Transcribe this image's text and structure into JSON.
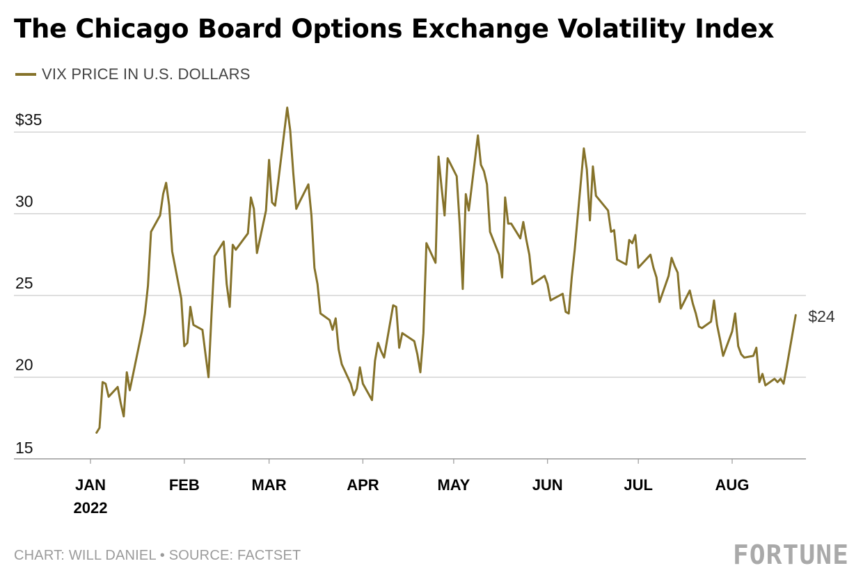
{
  "title": "The Chicago Board Options Exchange Volatility Index",
  "legend": {
    "label": "VIX PRICE IN U.S. DOLLARS"
  },
  "footer": {
    "credit": "CHART: WILL DANIEL • SOURCE: FACTSET",
    "logo": "FORTUNE"
  },
  "colors": {
    "series": "#85722a",
    "grid": "#cccccc",
    "axis": "#999999"
  },
  "chart_data": {
    "type": "line",
    "title": "The Chicago Board Options Exchange Volatility Index",
    "ylim": [
      15,
      35
    ],
    "y_ticks": [
      {
        "value": 35,
        "label": "$35"
      },
      {
        "value": 30,
        "label": "30"
      },
      {
        "value": 25,
        "label": "25"
      },
      {
        "value": 20,
        "label": "20"
      },
      {
        "value": 15,
        "label": "15"
      }
    ],
    "x_ticks": [
      {
        "date": "2022-01-01",
        "label": "JAN",
        "sublabel": "2022"
      },
      {
        "date": "2022-02-01",
        "label": "FEB"
      },
      {
        "date": "2022-03-01",
        "label": "MAR"
      },
      {
        "date": "2022-04-01",
        "label": "APR"
      },
      {
        "date": "2022-05-01",
        "label": "MAY"
      },
      {
        "date": "2022-06-01",
        "label": "JUN"
      },
      {
        "date": "2022-07-01",
        "label": "JUL"
      },
      {
        "date": "2022-08-01",
        "label": "AUG"
      }
    ],
    "grid": true,
    "end_label": "$24",
    "series": [
      {
        "name": "VIX PRICE IN U.S. DOLLARS",
        "points": [
          [
            "2022-01-03",
            16.6
          ],
          [
            "2022-01-04",
            16.9
          ],
          [
            "2022-01-05",
            19.7
          ],
          [
            "2022-01-06",
            19.6
          ],
          [
            "2022-01-07",
            18.8
          ],
          [
            "2022-01-10",
            19.4
          ],
          [
            "2022-01-11",
            18.4
          ],
          [
            "2022-01-12",
            17.6
          ],
          [
            "2022-01-13",
            20.3
          ],
          [
            "2022-01-14",
            19.2
          ],
          [
            "2022-01-18",
            22.8
          ],
          [
            "2022-01-19",
            23.9
          ],
          [
            "2022-01-20",
            25.6
          ],
          [
            "2022-01-21",
            28.9
          ],
          [
            "2022-01-24",
            29.9
          ],
          [
            "2022-01-25",
            31.2
          ],
          [
            "2022-01-26",
            31.9
          ],
          [
            "2022-01-27",
            30.5
          ],
          [
            "2022-01-28",
            27.7
          ],
          [
            "2022-01-31",
            24.8
          ],
          [
            "2022-02-01",
            21.9
          ],
          [
            "2022-02-02",
            22.1
          ],
          [
            "2022-02-03",
            24.3
          ],
          [
            "2022-02-04",
            23.2
          ],
          [
            "2022-02-07",
            22.9
          ],
          [
            "2022-02-08",
            21.4
          ],
          [
            "2022-02-09",
            20.0
          ],
          [
            "2022-02-10",
            23.9
          ],
          [
            "2022-02-11",
            27.4
          ],
          [
            "2022-02-14",
            28.3
          ],
          [
            "2022-02-15",
            25.7
          ],
          [
            "2022-02-16",
            24.3
          ],
          [
            "2022-02-17",
            28.1
          ],
          [
            "2022-02-18",
            27.8
          ],
          [
            "2022-02-22",
            28.8
          ],
          [
            "2022-02-23",
            31.0
          ],
          [
            "2022-02-24",
            30.3
          ],
          [
            "2022-02-25",
            27.6
          ],
          [
            "2022-02-28",
            30.2
          ],
          [
            "2022-03-01",
            33.3
          ],
          [
            "2022-03-02",
            30.7
          ],
          [
            "2022-03-03",
            30.5
          ],
          [
            "2022-03-04",
            31.9
          ],
          [
            "2022-03-07",
            36.5
          ],
          [
            "2022-03-08",
            35.1
          ],
          [
            "2022-03-09",
            32.5
          ],
          [
            "2022-03-10",
            30.3
          ],
          [
            "2022-03-11",
            30.7
          ],
          [
            "2022-03-14",
            31.8
          ],
          [
            "2022-03-15",
            29.9
          ],
          [
            "2022-03-16",
            26.7
          ],
          [
            "2022-03-17",
            25.7
          ],
          [
            "2022-03-18",
            23.9
          ],
          [
            "2022-03-21",
            23.5
          ],
          [
            "2022-03-22",
            22.9
          ],
          [
            "2022-03-23",
            23.6
          ],
          [
            "2022-03-24",
            21.7
          ],
          [
            "2022-03-25",
            20.8
          ],
          [
            "2022-03-28",
            19.6
          ],
          [
            "2022-03-29",
            18.9
          ],
          [
            "2022-03-30",
            19.3
          ],
          [
            "2022-03-31",
            20.6
          ],
          [
            "2022-04-01",
            19.6
          ],
          [
            "2022-04-04",
            18.6
          ],
          [
            "2022-04-05",
            21.0
          ],
          [
            "2022-04-06",
            22.1
          ],
          [
            "2022-04-07",
            21.6
          ],
          [
            "2022-04-08",
            21.2
          ],
          [
            "2022-04-11",
            24.4
          ],
          [
            "2022-04-12",
            24.3
          ],
          [
            "2022-04-13",
            21.8
          ],
          [
            "2022-04-14",
            22.7
          ],
          [
            "2022-04-18",
            22.2
          ],
          [
            "2022-04-19",
            21.4
          ],
          [
            "2022-04-20",
            20.3
          ],
          [
            "2022-04-21",
            22.7
          ],
          [
            "2022-04-22",
            28.2
          ],
          [
            "2022-04-25",
            27.0
          ],
          [
            "2022-04-26",
            33.5
          ],
          [
            "2022-04-27",
            31.6
          ],
          [
            "2022-04-28",
            29.9
          ],
          [
            "2022-04-29",
            33.4
          ],
          [
            "2022-05-02",
            32.3
          ],
          [
            "2022-05-03",
            29.3
          ],
          [
            "2022-05-04",
            25.4
          ],
          [
            "2022-05-05",
            31.2
          ],
          [
            "2022-05-06",
            30.2
          ],
          [
            "2022-05-09",
            34.8
          ],
          [
            "2022-05-10",
            33.0
          ],
          [
            "2022-05-11",
            32.6
          ],
          [
            "2022-05-12",
            31.8
          ],
          [
            "2022-05-13",
            28.9
          ],
          [
            "2022-05-16",
            27.5
          ],
          [
            "2022-05-17",
            26.1
          ],
          [
            "2022-05-18",
            31.0
          ],
          [
            "2022-05-19",
            29.4
          ],
          [
            "2022-05-20",
            29.4
          ],
          [
            "2022-05-23",
            28.5
          ],
          [
            "2022-05-24",
            29.5
          ],
          [
            "2022-05-25",
            28.4
          ],
          [
            "2022-05-26",
            27.5
          ],
          [
            "2022-05-27",
            25.7
          ],
          [
            "2022-05-31",
            26.2
          ],
          [
            "2022-06-01",
            25.7
          ],
          [
            "2022-06-02",
            24.7
          ],
          [
            "2022-06-03",
            24.8
          ],
          [
            "2022-06-06",
            25.1
          ],
          [
            "2022-06-07",
            24.0
          ],
          [
            "2022-06-08",
            23.9
          ],
          [
            "2022-06-09",
            26.1
          ],
          [
            "2022-06-10",
            27.8
          ],
          [
            "2022-06-13",
            34.0
          ],
          [
            "2022-06-14",
            32.7
          ],
          [
            "2022-06-15",
            29.6
          ],
          [
            "2022-06-16",
            32.9
          ],
          [
            "2022-06-17",
            31.1
          ],
          [
            "2022-06-21",
            30.2
          ],
          [
            "2022-06-22",
            28.9
          ],
          [
            "2022-06-23",
            29.0
          ],
          [
            "2022-06-24",
            27.2
          ],
          [
            "2022-06-27",
            26.9
          ],
          [
            "2022-06-28",
            28.4
          ],
          [
            "2022-06-29",
            28.2
          ],
          [
            "2022-06-30",
            28.7
          ],
          [
            "2022-07-01",
            26.7
          ],
          [
            "2022-07-05",
            27.5
          ],
          [
            "2022-07-06",
            26.7
          ],
          [
            "2022-07-07",
            26.1
          ],
          [
            "2022-07-08",
            24.6
          ],
          [
            "2022-07-11",
            26.2
          ],
          [
            "2022-07-12",
            27.3
          ],
          [
            "2022-07-13",
            26.8
          ],
          [
            "2022-07-14",
            26.4
          ],
          [
            "2022-07-15",
            24.2
          ],
          [
            "2022-07-18",
            25.3
          ],
          [
            "2022-07-19",
            24.5
          ],
          [
            "2022-07-20",
            23.9
          ],
          [
            "2022-07-21",
            23.1
          ],
          [
            "2022-07-22",
            23.0
          ],
          [
            "2022-07-25",
            23.4
          ],
          [
            "2022-07-26",
            24.7
          ],
          [
            "2022-07-27",
            23.2
          ],
          [
            "2022-07-28",
            22.3
          ],
          [
            "2022-07-29",
            21.3
          ],
          [
            "2022-08-01",
            22.8
          ],
          [
            "2022-08-02",
            23.9
          ],
          [
            "2022-08-03",
            21.9
          ],
          [
            "2022-08-04",
            21.4
          ],
          [
            "2022-08-05",
            21.2
          ],
          [
            "2022-08-08",
            21.3
          ],
          [
            "2022-08-09",
            21.8
          ],
          [
            "2022-08-10",
            19.7
          ],
          [
            "2022-08-11",
            20.2
          ],
          [
            "2022-08-12",
            19.5
          ],
          [
            "2022-08-15",
            19.9
          ],
          [
            "2022-08-16",
            19.7
          ],
          [
            "2022-08-17",
            19.9
          ],
          [
            "2022-08-18",
            19.6
          ],
          [
            "2022-08-19",
            20.6
          ],
          [
            "2022-08-22",
            23.8
          ]
        ]
      }
    ]
  }
}
